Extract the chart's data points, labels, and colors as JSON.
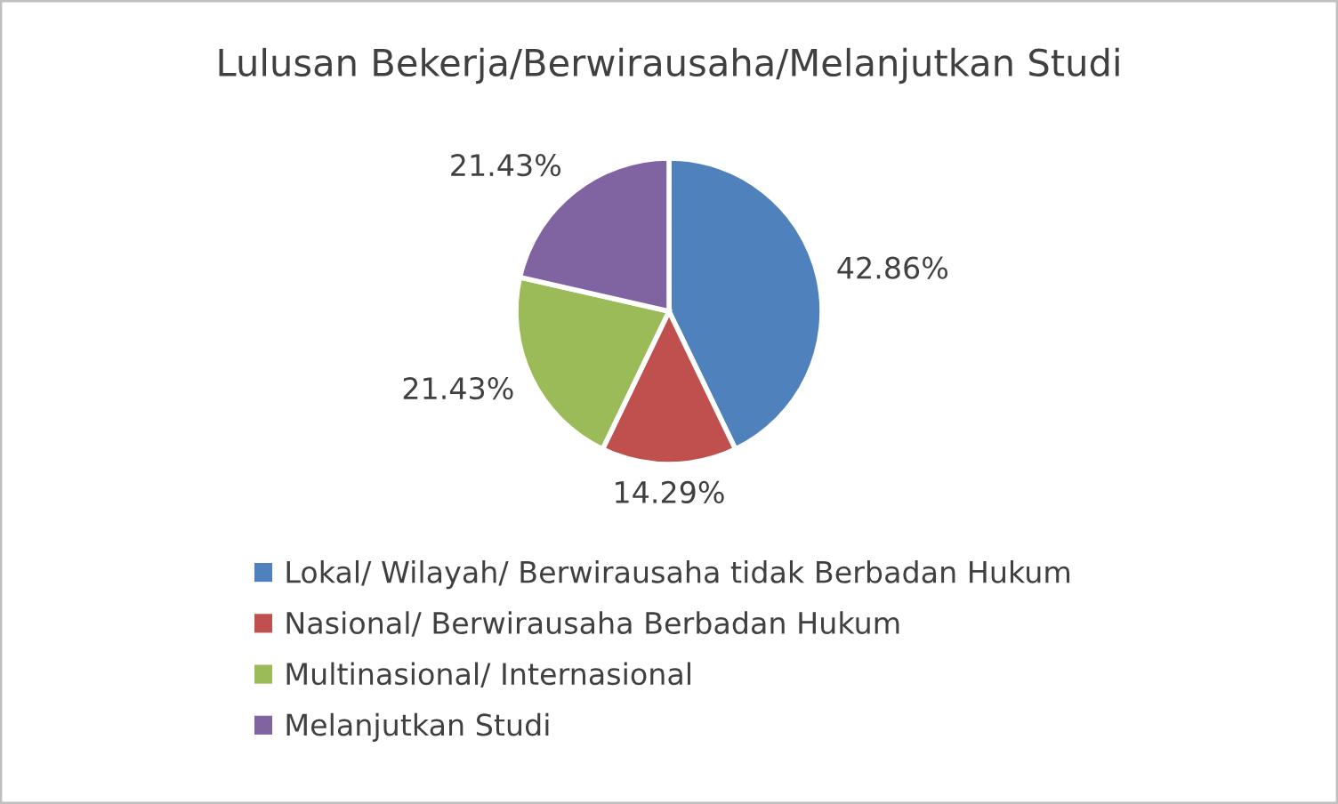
{
  "chart_data": {
    "type": "pie",
    "title": "Lulusan Bekerja/Berwirausaha/Melanjutkan Studi",
    "categories": [
      "Lokal/ Wilayah/ Berwirausaha tidak Berbadan Hukum",
      "Nasional/ Berwirausaha Berbadan Hukum",
      "Multinasional/ Internasional",
      "Melanjutkan Studi"
    ],
    "values": [
      42.86,
      14.29,
      21.43,
      21.43
    ],
    "value_labels": [
      "42.86%",
      "14.29%",
      "21.43%",
      "21.43%"
    ],
    "colors": [
      "#4f81bd",
      "#c0504d",
      "#9bbb59",
      "#8064a2"
    ],
    "legend": "bottom"
  }
}
